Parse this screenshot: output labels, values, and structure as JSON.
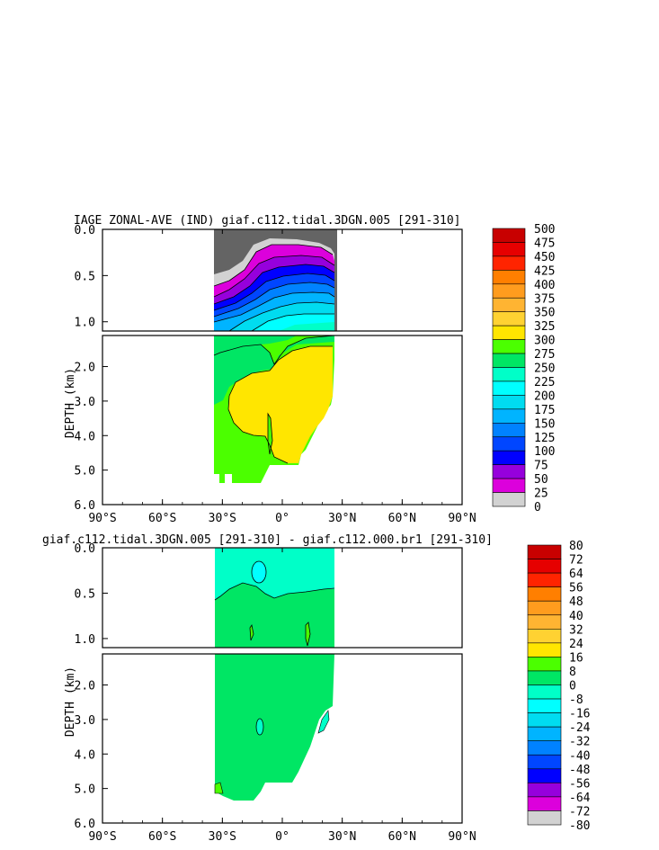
{
  "chart_data": [
    {
      "type": "heatmap",
      "title": "IAGE ZONAL-AVE (IND) giaf.c112.tidal.3DGN.005 [291-310]",
      "ylabel": "DEPTH (km)",
      "x_ticks": [
        "90°S",
        "60°S",
        "30°S",
        "0°",
        "30°N",
        "60°N",
        "90°N"
      ],
      "x_values": [
        -90,
        -60,
        -30,
        0,
        30,
        60,
        90
      ],
      "xlim": [
        -90,
        90
      ],
      "ylim_upper_panel": [
        0,
        1.1
      ],
      "ylim_lower_panel": [
        1.1,
        6.0
      ],
      "y_ticks_upper": [
        "0.0",
        "0.5",
        "1.0"
      ],
      "y_ticks_lower": [
        "2.0",
        "3.0",
        "4.0",
        "5.0",
        "6.0"
      ],
      "legend_levels": [
        "500",
        "475",
        "450",
        "425",
        "400",
        "375",
        "350",
        "325",
        "300",
        "275",
        "250",
        "225",
        "200",
        "175",
        "150",
        "125",
        "100",
        "75",
        "50",
        "25",
        "0"
      ],
      "legend_colors": [
        "#c80000",
        "#e60000",
        "#ff2400",
        "#ff7f00",
        "#ff9c1e",
        "#ffb432",
        "#ffd232",
        "#ffe600",
        "#4bff00",
        "#00e664",
        "#00ffc8",
        "#00ffff",
        "#00dcf0",
        "#00b4ff",
        "#0082ff",
        "#0046ff",
        "#0000ff",
        "#9600dc",
        "#dc00dc",
        "#d2d2d2",
        "#646464"
      ]
    },
    {
      "type": "heatmap",
      "title": "giaf.c112.tidal.3DGN.005 [291-310] - giaf.c112.000.br1 [291-310]",
      "ylabel": "DEPTH (km)",
      "x_ticks": [
        "90°S",
        "60°S",
        "30°S",
        "0°",
        "30°N",
        "60°N",
        "90°N"
      ],
      "x_values": [
        -90,
        -60,
        -30,
        0,
        30,
        60,
        90
      ],
      "xlim": [
        -90,
        90
      ],
      "ylim_upper_panel": [
        0,
        1.1
      ],
      "ylim_lower_panel": [
        1.1,
        6.0
      ],
      "y_ticks_upper": [
        "0.0",
        "0.5",
        "1.0"
      ],
      "y_ticks_lower": [
        "2.0",
        "3.0",
        "4.0",
        "5.0",
        "6.0"
      ],
      "legend_levels": [
        "80",
        "72",
        "64",
        "56",
        "48",
        "40",
        "32",
        "24",
        "16",
        "8",
        "0",
        "-8",
        "-16",
        "-24",
        "-32",
        "-40",
        "-48",
        "-56",
        "-64",
        "-72",
        "-80"
      ],
      "legend_colors": [
        "#c80000",
        "#e60000",
        "#ff2400",
        "#ff7f00",
        "#ff9c1e",
        "#ffb432",
        "#ffd232",
        "#ffe600",
        "#4bff00",
        "#00e664",
        "#00ffc8",
        "#00ffff",
        "#00dcf0",
        "#00b4ff",
        "#0082ff",
        "#0046ff",
        "#0000ff",
        "#9600dc",
        "#dc00dc",
        "#d2d2d2",
        "#646464"
      ]
    }
  ]
}
